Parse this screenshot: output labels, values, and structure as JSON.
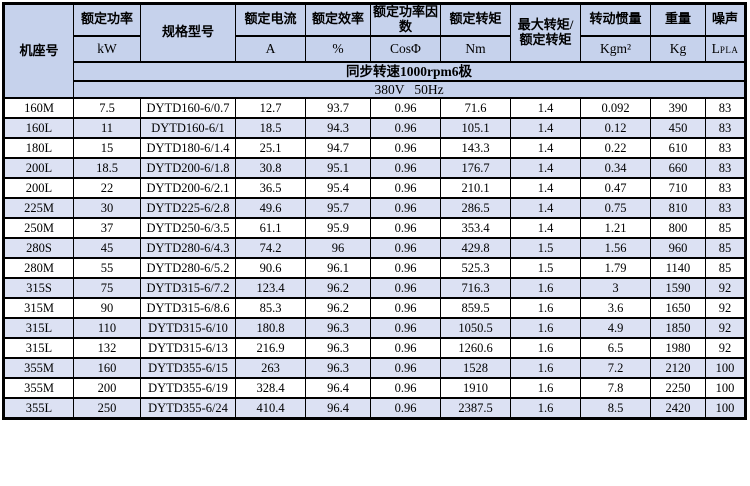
{
  "colors": {
    "header_bg": "#c6d2ec",
    "alt_row_bg": "#dce1f3",
    "border": "#000000",
    "text": "#000000"
  },
  "table": {
    "columns": [
      {
        "key": "frame",
        "name": "机座号",
        "unit": ""
      },
      {
        "key": "rated_power",
        "name": "额定功率",
        "unit": "kW"
      },
      {
        "key": "model",
        "name": "规格型号",
        "unit": ""
      },
      {
        "key": "rated_current",
        "name": "额定电流",
        "unit": "A"
      },
      {
        "key": "efficiency",
        "name": "额定效率",
        "unit": "%"
      },
      {
        "key": "power_factor",
        "name": "额定功率因数",
        "unit": "CosΦ"
      },
      {
        "key": "rated_torque",
        "name": "额定转矩",
        "unit": "Nm"
      },
      {
        "key": "torque_ratio",
        "name": "最大转矩/额定转矩",
        "unit": ""
      },
      {
        "key": "inertia",
        "name": "转动惯量",
        "unit": "Kgm²"
      },
      {
        "key": "weight",
        "name": "重量",
        "unit": "Kg"
      },
      {
        "key": "noise",
        "name": "噪声",
        "unit_main": "L",
        "unit_sub": "PLA"
      }
    ],
    "bands": [
      "同步转速1000rpm6极",
      "380V   50Hz"
    ],
    "rows": [
      [
        "160M",
        "7.5",
        "DYTD160-6/0.7",
        "12.7",
        "93.7",
        "0.96",
        "71.6",
        "1.4",
        "0.092",
        "390",
        "83"
      ],
      [
        "160L",
        "11",
        "DYTD160-6/1",
        "18.5",
        "94.3",
        "0.96",
        "105.1",
        "1.4",
        "0.12",
        "450",
        "83"
      ],
      [
        "180L",
        "15",
        "DYTD180-6/1.4",
        "25.1",
        "94.7",
        "0.96",
        "143.3",
        "1.4",
        "0.22",
        "610",
        "83"
      ],
      [
        "200L",
        "18.5",
        "DYTD200-6/1.8",
        "30.8",
        "95.1",
        "0.96",
        "176.7",
        "1.4",
        "0.34",
        "660",
        "83"
      ],
      [
        "200L",
        "22",
        "DYTD200-6/2.1",
        "36.5",
        "95.4",
        "0.96",
        "210.1",
        "1.4",
        "0.47",
        "710",
        "83"
      ],
      [
        "225M",
        "30",
        "DYTD225-6/2.8",
        "49.6",
        "95.7",
        "0.96",
        "286.5",
        "1.4",
        "0.75",
        "810",
        "83"
      ],
      [
        "250M",
        "37",
        "DYTD250-6/3.5",
        "61.1",
        "95.9",
        "0.96",
        "353.4",
        "1.4",
        "1.21",
        "800",
        "85"
      ],
      [
        "280S",
        "45",
        "DYTD280-6/4.3",
        "74.2",
        "96",
        "0.96",
        "429.8",
        "1.5",
        "1.56",
        "960",
        "85"
      ],
      [
        "280M",
        "55",
        "DYTD280-6/5.2",
        "90.6",
        "96.1",
        "0.96",
        "525.3",
        "1.5",
        "1.79",
        "1140",
        "85"
      ],
      [
        "315S",
        "75",
        "DYTD315-6/7.2",
        "123.4",
        "96.2",
        "0.96",
        "716.3",
        "1.6",
        "3",
        "1590",
        "92"
      ],
      [
        "315M",
        "90",
        "DYTD315-6/8.6",
        "85.3",
        "96.2",
        "0.96",
        "859.5",
        "1.6",
        "3.6",
        "1650",
        "92"
      ],
      [
        "315L",
        "110",
        "DYTD315-6/10",
        "180.8",
        "96.3",
        "0.96",
        "1050.5",
        "1.6",
        "4.9",
        "1850",
        "92"
      ],
      [
        "315L",
        "132",
        "DYTD315-6/13",
        "216.9",
        "96.3",
        "0.96",
        "1260.6",
        "1.6",
        "6.5",
        "1980",
        "92"
      ],
      [
        "355M",
        "160",
        "DYTD355-6/15",
        "263",
        "96.3",
        "0.96",
        "1528",
        "1.6",
        "7.2",
        "2120",
        "100"
      ],
      [
        "355M",
        "200",
        "DYTD355-6/19",
        "328.4",
        "96.4",
        "0.96",
        "1910",
        "1.6",
        "7.8",
        "2250",
        "100"
      ],
      [
        "355L",
        "250",
        "DYTD355-6/24",
        "410.4",
        "96.4",
        "0.96",
        "2387.5",
        "1.6",
        "8.5",
        "2420",
        "100"
      ]
    ]
  }
}
